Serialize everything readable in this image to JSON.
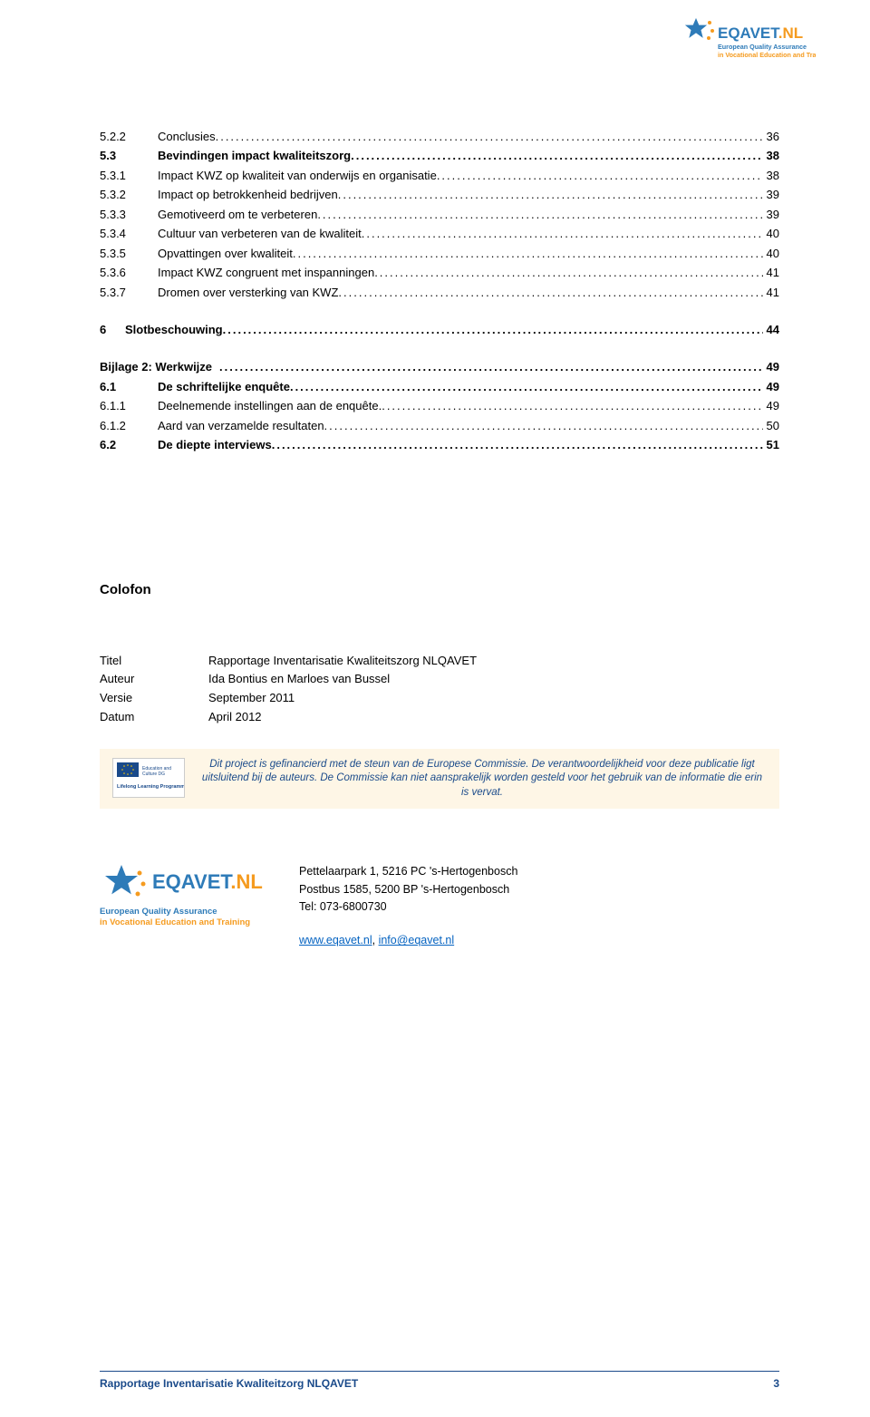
{
  "logo": {
    "brand_blue": "EQAVET",
    "brand_orange": ".NL",
    "tagline1": "European Quality Assurance",
    "tagline2": "in Vocational Education and Training",
    "star_color": "#2e7bb8",
    "dot_color": "#f59b1f"
  },
  "toc": [
    {
      "num": "5.2.2",
      "title": "Conclusies",
      "page": "36",
      "bold": false,
      "indent": 1
    },
    {
      "num": "5.3",
      "title": "Bevindingen impact kwaliteitszorg",
      "page": "38",
      "bold": true,
      "indent": 1
    },
    {
      "num": "5.3.1",
      "title": "Impact KWZ op kwaliteit van onderwijs en organisatie",
      "page": "38",
      "bold": false,
      "indent": 1
    },
    {
      "num": "5.3.2",
      "title": "Impact op betrokkenheid bedrijven",
      "page": "39",
      "bold": false,
      "indent": 1
    },
    {
      "num": "5.3.3",
      "title": "Gemotiveerd om te verbeteren",
      "page": "39",
      "bold": false,
      "indent": 1
    },
    {
      "num": "5.3.4",
      "title": "Cultuur van verbeteren van de kwaliteit",
      "page": "40",
      "bold": false,
      "indent": 1
    },
    {
      "num": "5.3.5",
      "title": "Opvattingen over kwaliteit",
      "page": "40",
      "bold": false,
      "indent": 1
    },
    {
      "num": "5.3.6",
      "title": "Impact KWZ congruent met inspanningen",
      "page": "41",
      "bold": false,
      "indent": 1
    },
    {
      "num": "5.3.7",
      "title": "Dromen over versterking van KWZ",
      "page": "41",
      "bold": false,
      "indent": 1
    },
    {
      "spacer": true
    },
    {
      "num": "6",
      "title": "Slotbeschouwing",
      "page": "44",
      "bold": true,
      "indent": 0
    },
    {
      "spacer": true
    },
    {
      "num": "Bijlage 2: Werkwijze",
      "title": "",
      "page": "49",
      "bold": true,
      "indent": 0,
      "nonum": true
    },
    {
      "num": "6.1",
      "title": "De schriftelijke enquête",
      "page": "49",
      "bold": true,
      "indent": 1
    },
    {
      "num": "6.1.1",
      "title": "Deelnemende instellingen aan de enquête.",
      "page": "49",
      "bold": false,
      "indent": 1
    },
    {
      "num": "6.1.2",
      "title": "Aard van verzamelde resultaten",
      "page": "50",
      "bold": false,
      "indent": 1
    },
    {
      "num": "6.2",
      "title": "De diepte interviews",
      "page": "51",
      "bold": true,
      "indent": 1
    }
  ],
  "colofon": {
    "heading": "Colofon",
    "rows": [
      {
        "label": "Titel",
        "value": "Rapportage Inventarisatie Kwaliteitszorg NLQAVET"
      },
      {
        "label": "Auteur",
        "value": "Ida Bontius en Marloes van Bussel"
      },
      {
        "label": "Versie",
        "value": "September 2011"
      },
      {
        "label": "Datum",
        "value": "April 2012"
      }
    ]
  },
  "disclaimer": {
    "logo_text": "Lifelong Learning Programme",
    "text": "Dit project is gefinancierd met de steun van de Europese Commissie. De verantwoordelijkheid voor deze publicatie ligt uitsluitend bij de auteurs. De Commissie kan niet aansprakelijk worden gesteld voor het gebruik van de informatie die erin is vervat."
  },
  "contact": {
    "addr1": "Pettelaarpark 1, 5216 PC 's-Hertogenbosch",
    "addr2": "Postbus 1585, 5200 BP 's-Hertogenbosch",
    "tel": "Tel: 073-6800730",
    "link1": "www.eqavet.nl",
    "sep": ", ",
    "link2": "info@eqavet.nl"
  },
  "footer": {
    "title": "Rapportage Inventarisatie Kwaliteitzorg NLQAVET",
    "page": "3"
  },
  "colors": {
    "brand_blue": "#2e7bb8",
    "brand_orange": "#f59b1f",
    "footer_blue": "#1a4a8a",
    "link": "#0563c1",
    "disclaimer_bg": "#fef6e6"
  }
}
